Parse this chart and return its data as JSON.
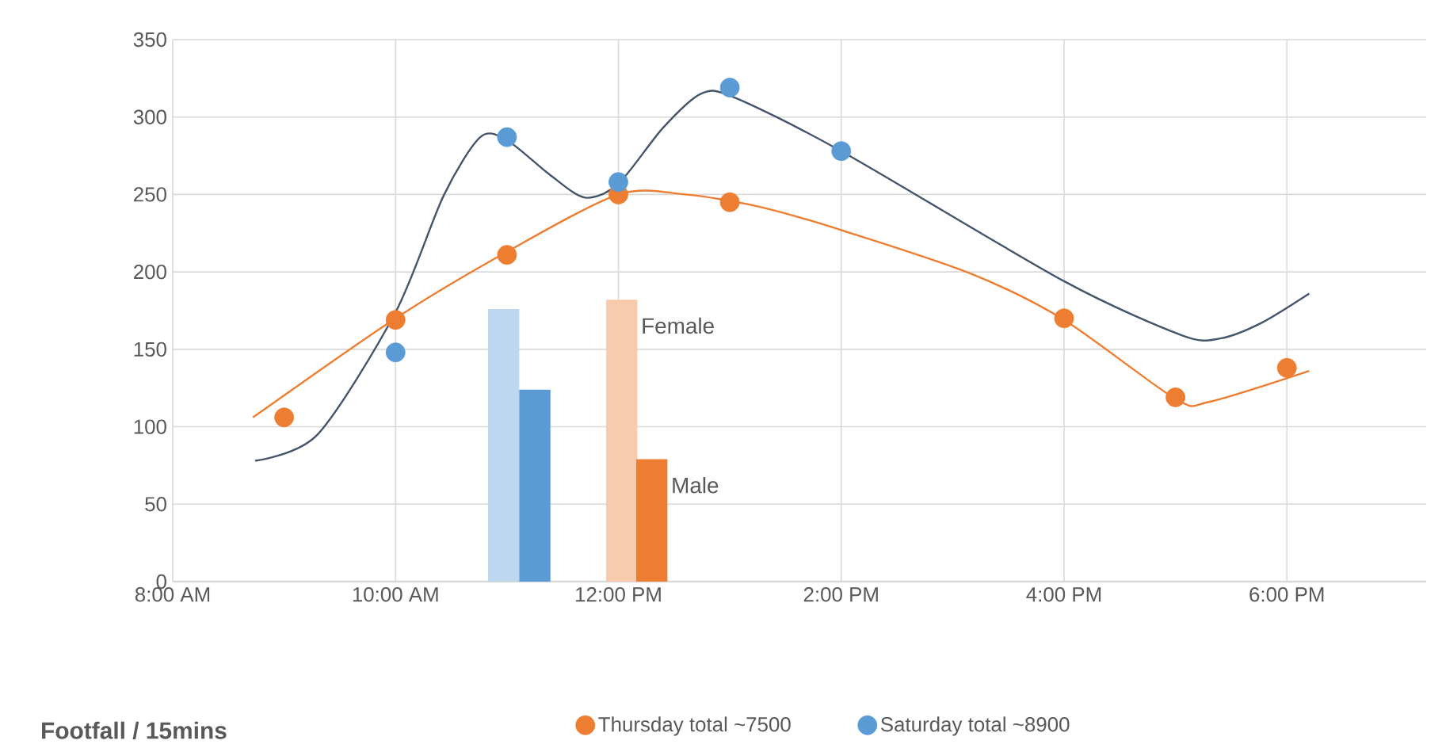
{
  "chart_data": {
    "type": "scatter",
    "xlim": [
      8,
      19.25
    ],
    "ylim": [
      0,
      350
    ],
    "xticks": [
      {
        "value": 8,
        "label": "8:00 AM"
      },
      {
        "value": 10,
        "label": "10:00 AM"
      },
      {
        "value": 12,
        "label": "12:00 PM"
      },
      {
        "value": 14,
        "label": "2:00 PM"
      },
      {
        "value": 16,
        "label": "4:00 PM"
      },
      {
        "value": 18,
        "label": "6:00 PM"
      }
    ],
    "yticks": [
      0,
      50,
      100,
      150,
      200,
      250,
      300,
      350
    ],
    "grid": true,
    "legend": "bottom",
    "annotations": [
      "Footfall / 15mins",
      {
        "text": "Female",
        "x": 12.03,
        "y": 182
      },
      {
        "text": "Male",
        "x": 12.3,
        "y": 79
      }
    ],
    "series": [
      {
        "type": "bar",
        "color": "#bdd7ee",
        "x": [
          10.97
        ],
        "values": [
          176
        ]
      },
      {
        "type": "bar",
        "color": "#5b9bd5",
        "x": [
          11.25
        ],
        "values": [
          124
        ]
      },
      {
        "type": "bar",
        "color": "#f8cbad",
        "x": [
          12.03
        ],
        "values": [
          182
        ]
      },
      {
        "type": "bar",
        "color": "#ed7d31",
        "x": [
          12.3
        ],
        "values": [
          79
        ]
      },
      {
        "type": "line",
        "color": "#ed7d31",
        "x": [
          8.72,
          10,
          11,
          12,
          12.6,
          13.27,
          14,
          15.16,
          16,
          17,
          17.3,
          18.2
        ],
        "values": [
          106,
          170,
          213,
          250,
          250,
          242,
          227,
          199,
          169,
          118,
          116,
          136
        ]
      },
      {
        "type": "line",
        "color": "#44546a",
        "x": [
          8.74,
          9.3,
          10,
          10.43,
          10.76,
          11.0,
          11.38,
          11.7,
          12.0,
          12.4,
          12.74,
          13.03,
          14.0,
          16.0,
          17.06,
          17.4,
          17.77,
          18.2
        ],
        "values": [
          78,
          95,
          174,
          249,
          287,
          285,
          263,
          248,
          257,
          293,
          315,
          313,
          278,
          194,
          159,
          157,
          167,
          186
        ]
      },
      {
        "marker": "circle",
        "name": "Thursday total ~7500",
        "color": "#ed7d31",
        "x": [
          9,
          10,
          11,
          12,
          13,
          16,
          17,
          18
        ],
        "values": [
          106,
          169,
          211,
          250,
          245,
          170,
          119,
          138
        ]
      },
      {
        "marker": "circle",
        "name": "Saturday total ~8900",
        "color": "#5b9bd5",
        "x": [
          10,
          11,
          12,
          13,
          14
        ],
        "values": [
          148,
          287,
          258,
          319,
          278
        ]
      }
    ]
  }
}
